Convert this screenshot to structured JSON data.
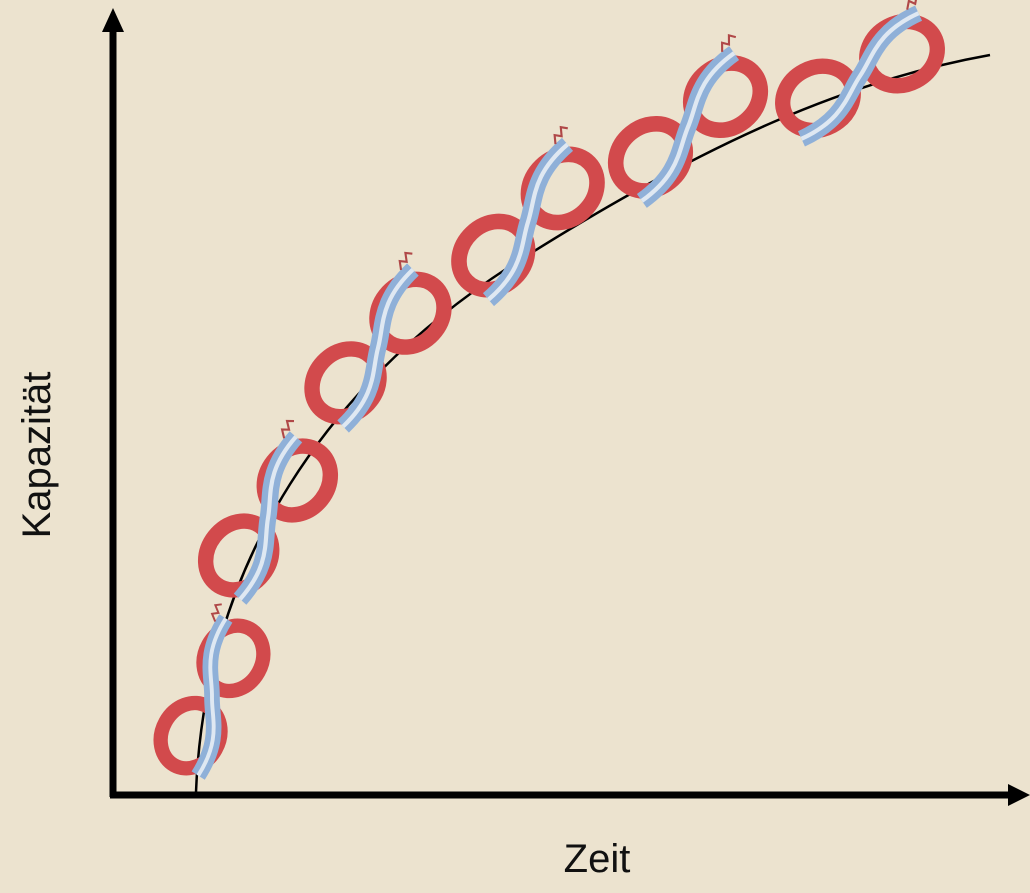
{
  "axes": {
    "x_label": "Zeit",
    "y_label": "Kapazität"
  }
}
